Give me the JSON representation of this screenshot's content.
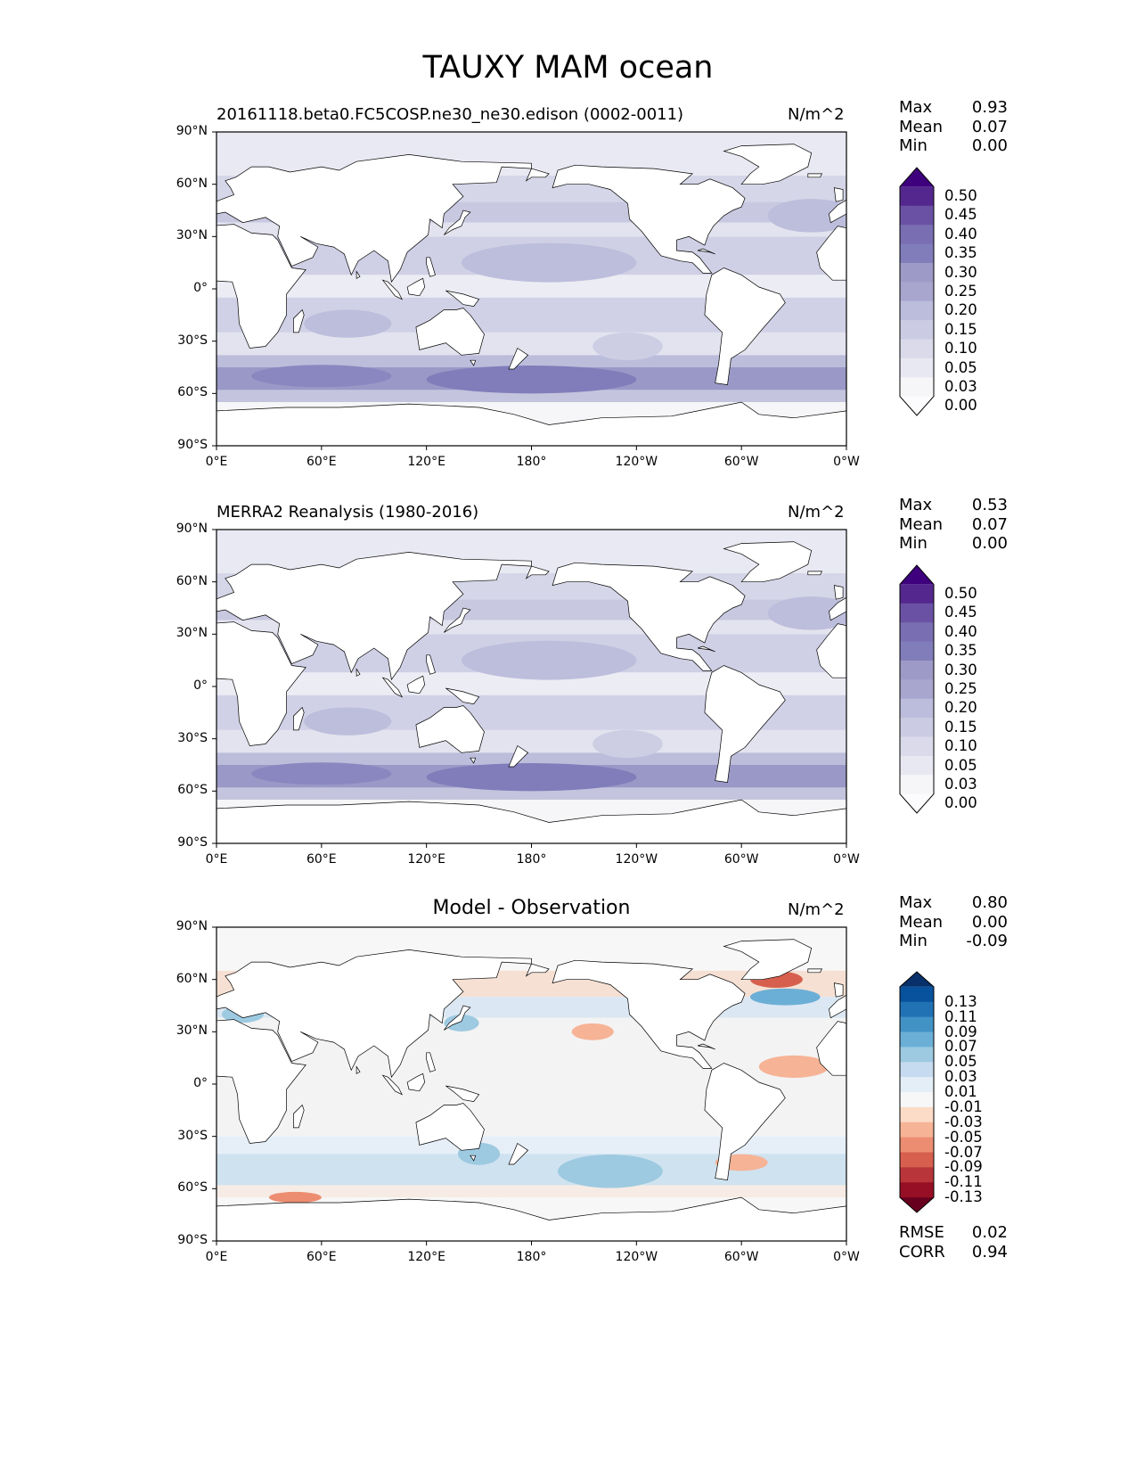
{
  "title": "TAUXY MAM ocean",
  "panels": [
    {
      "name": "model",
      "title": "20161118.beta0.FC5COSP.ne30_ne30.edison (0002-0011)",
      "units": "N/m^2",
      "stats": {
        "max_label": "Max",
        "max": "0.93",
        "mean_label": "Mean",
        "mean": "0.07",
        "min_label": "Min",
        "min": "0.00"
      },
      "colorbar": {
        "labels": [
          "0.50",
          "0.45",
          "0.40",
          "0.35",
          "0.30",
          "0.25",
          "0.20",
          "0.15",
          "0.10",
          "0.05",
          "0.03",
          "0.00"
        ],
        "colors": [
          "#3f007d",
          "#54278f",
          "#6a51a3",
          "#796eb2",
          "#807dba",
          "#9e9ac8",
          "#a8a6cf",
          "#bcbddc",
          "#cbcbe3",
          "#dadaeb",
          "#e8e8f2",
          "#f6f6f9",
          "#fcfbfd"
        ]
      }
    },
    {
      "name": "observation",
      "title": "MERRA2 Reanalysis (1980-2016)",
      "units": "N/m^2",
      "stats": {
        "max_label": "Max",
        "max": "0.53",
        "mean_label": "Mean",
        "mean": "0.07",
        "min_label": "Min",
        "min": "0.00"
      },
      "colorbar": {
        "labels": [
          "0.50",
          "0.45",
          "0.40",
          "0.35",
          "0.30",
          "0.25",
          "0.20",
          "0.15",
          "0.10",
          "0.05",
          "0.03",
          "0.00"
        ],
        "colors": [
          "#3f007d",
          "#54278f",
          "#6a51a3",
          "#796eb2",
          "#807dba",
          "#9e9ac8",
          "#a8a6cf",
          "#bcbddc",
          "#cbcbe3",
          "#dadaeb",
          "#e8e8f2",
          "#f6f6f9",
          "#fcfbfd"
        ]
      }
    },
    {
      "name": "difference",
      "title": "Model - Observation",
      "units": "N/m^2",
      "stats": {
        "max_label": "Max",
        "max": "0.80",
        "mean_label": "Mean",
        "mean": "0.00",
        "min_label": "Min",
        "min": "-0.09"
      },
      "colorbar": {
        "labels": [
          "0.13",
          "0.11",
          "0.09",
          "0.07",
          "0.05",
          "0.03",
          "0.01",
          "-0.01",
          "-0.03",
          "-0.05",
          "-0.07",
          "-0.09",
          "-0.11",
          "-0.13"
        ],
        "colors": [
          "#08306b",
          "#08519c",
          "#2171b5",
          "#4292c6",
          "#6baed6",
          "#9ecae1",
          "#c6dbef",
          "#e3eef7",
          "#f7f7f7",
          "#fcdbc7",
          "#f6b396",
          "#ec8c70",
          "#d6604d",
          "#b8353a",
          "#960f25",
          "#67001f"
        ]
      },
      "footer": {
        "rmse_label": "RMSE",
        "rmse": "0.02",
        "corr_label": "CORR",
        "corr": "0.94"
      }
    }
  ],
  "axes": {
    "y_ticks": [
      "90°N",
      "60°N",
      "30°N",
      "0°",
      "30°S",
      "60°S",
      "90°S"
    ],
    "x_ticks": [
      "0°E",
      "60°E",
      "120°E",
      "180°",
      "120°W",
      "60°W",
      "0°W"
    ]
  },
  "colors": {
    "land": "#ffffff",
    "coast": "#000000"
  }
}
